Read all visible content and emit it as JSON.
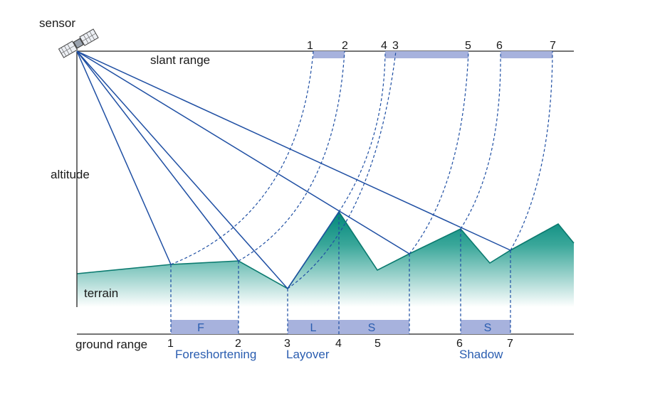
{
  "labels": {
    "sensor": "sensor",
    "slant_range": "slant range",
    "altitude": "altitude",
    "terrain": "terrain",
    "ground_range": "ground range"
  },
  "slant_ticks": [
    "1",
    "2",
    "4",
    "3",
    "5",
    "6",
    "7"
  ],
  "ground_ticks": [
    "1",
    "2",
    "3",
    "4",
    "5",
    "6",
    "7"
  ],
  "bands": {
    "foreshortening": "F",
    "layover": "L",
    "shadow_layover": "S",
    "shadow": "S"
  },
  "effects": {
    "foreshortening": "Foreshortening",
    "layover": "Layover",
    "shadow": "Shadow"
  },
  "colors": {
    "ray": "#1f4fa3",
    "band_fill": "#a7b2dd",
    "terrain_top": "#00877a",
    "terrain_bottom": "#ffffff",
    "effect_text": "#2a5db0"
  },
  "icons": {
    "sensor": "satellite-icon"
  }
}
